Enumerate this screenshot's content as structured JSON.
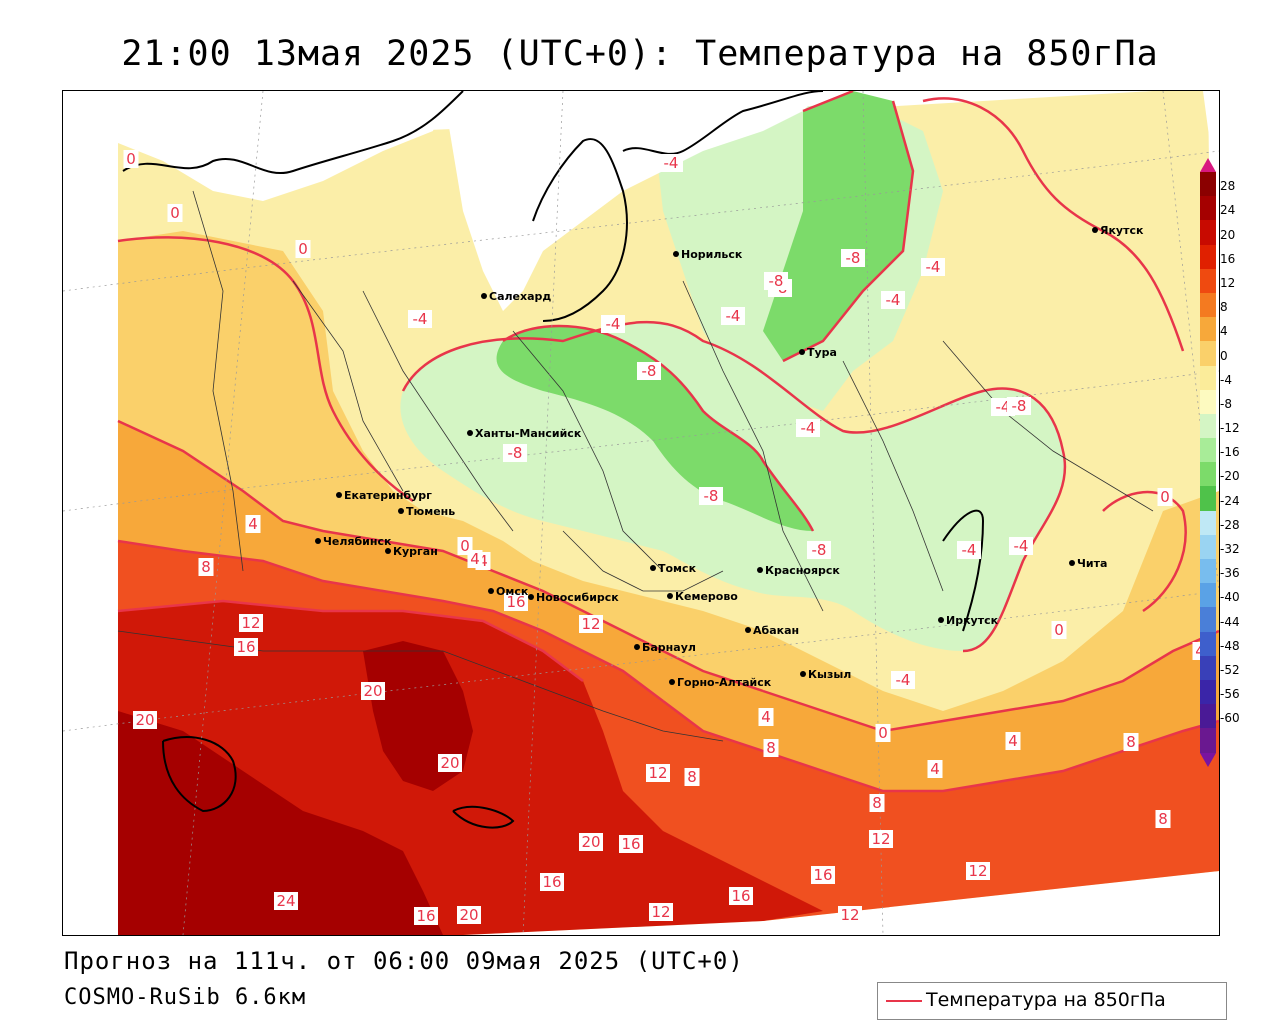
{
  "title": "21:00 13мая 2025 (UTC+0): Температура на 850гПа",
  "footer": {
    "forecast": "Прогноз на 111ч. от 06:00 09мая 2025 (UTC+0)",
    "model": "COSMO-RuSib 6.6км"
  },
  "legend": {
    "label": "Температура на 850гПа",
    "line_color": "#e8354a"
  },
  "colorbar": {
    "labels": [
      "28",
      "24",
      "20",
      "16",
      "12",
      "8",
      "4",
      "0",
      "-4",
      "-8",
      "-12",
      "-16",
      "-20",
      "-24",
      "-28",
      "-32",
      "-36",
      "-40",
      "-44",
      "-48",
      "-52",
      "-56",
      "-60"
    ],
    "colors": [
      "#8b0000",
      "#a50000",
      "#c80a00",
      "#e02000",
      "#ef4a10",
      "#f47a20",
      "#f7a83a",
      "#fad06a",
      "#fbec9a",
      "#fdfac0",
      "#d4f5c4",
      "#a8ec98",
      "#7cdb6a",
      "#4fc24a",
      "#bfe8f5",
      "#9ad4f2",
      "#78bdee",
      "#5aa2e6",
      "#4a7fd8",
      "#3e5fcc",
      "#3940b8",
      "#3a25a8",
      "#4a1a96",
      "#6a1890"
    ],
    "arrow_top": "#d81880",
    "arrow_bottom": "#7a14a0"
  },
  "cities": [
    {
      "name": "Норильск"
    },
    {
      "name": "Якутск"
    },
    {
      "name": "Салехард"
    },
    {
      "name": "Тура"
    },
    {
      "name": "Ханты-Мансийск"
    },
    {
      "name": "Екатеринбург"
    },
    {
      "name": "Тюмень"
    },
    {
      "name": "Челябинск"
    },
    {
      "name": "Курган"
    },
    {
      "name": "Омск"
    },
    {
      "name": "Новосибирск"
    },
    {
      "name": "Томск"
    },
    {
      "name": "Кемерово"
    },
    {
      "name": "Красноярск"
    },
    {
      "name": "Абакан"
    },
    {
      "name": "Барнаул"
    },
    {
      "name": "Горно-Алтайск"
    },
    {
      "name": "Кызыл"
    },
    {
      "name": "Иркутск"
    },
    {
      "name": "Чита"
    }
  ],
  "isotherm_labels": [
    "0",
    "0",
    "0",
    "-4",
    "-4",
    "-4",
    "-8",
    "-8",
    "-8",
    "-8",
    "-8",
    "-4",
    "-4",
    "-4",
    "-8",
    "-8",
    "-4",
    "-4",
    "4",
    "4",
    "0",
    "4",
    "8",
    "12",
    "16",
    "16",
    "12",
    "20",
    "20",
    "20",
    "24",
    "20",
    "16",
    "16",
    "16",
    "16",
    "12",
    "12",
    "8",
    "8",
    "8",
    "4",
    "4",
    "0",
    "-4",
    "-4",
    "-4",
    "0",
    "4",
    "8",
    "8",
    "12",
    "12",
    "16",
    "20",
    "12",
    "0",
    "-8",
    "4"
  ],
  "field_colors": {
    "very_hot": "#a50000",
    "hot": "#d01808",
    "warm": "#f05020",
    "mild": "#f7a83a",
    "cool": "#fad06a",
    "pale": "#fbeea8",
    "cold": "#d4f5c4",
    "colder": "#7cdb6a",
    "ocean": "#ffffff",
    "contour": "#e8354a",
    "border": "#000000"
  }
}
